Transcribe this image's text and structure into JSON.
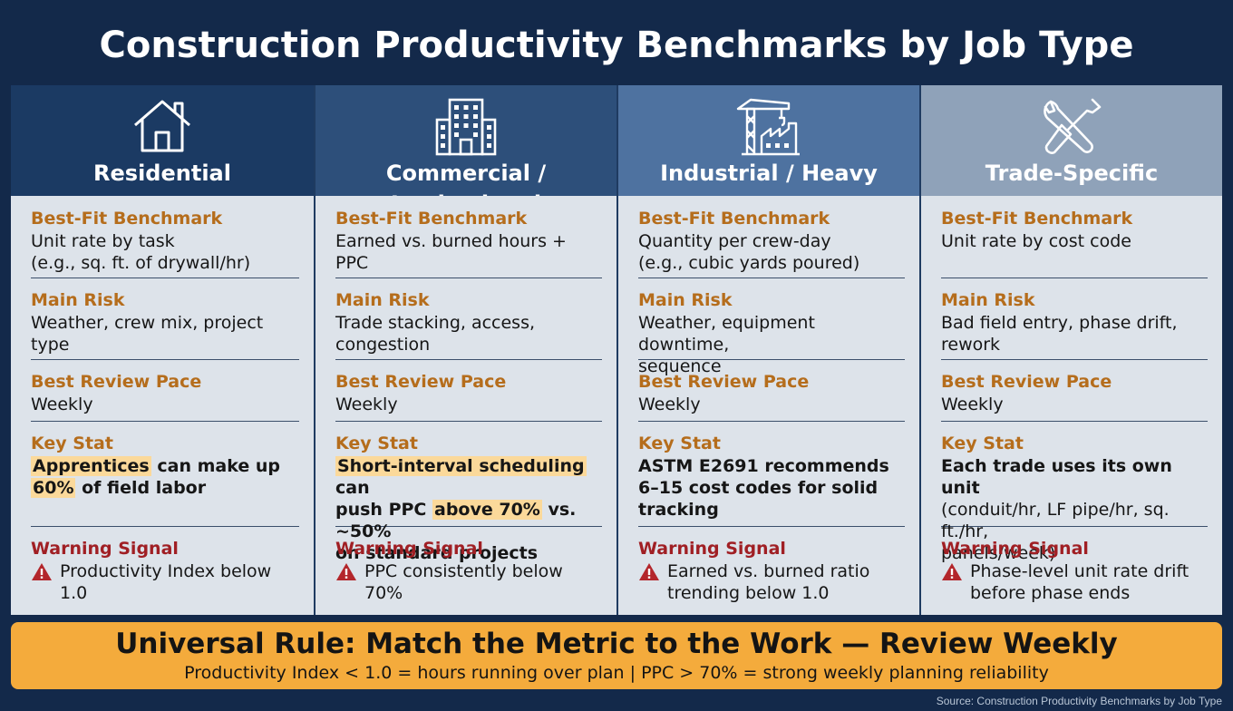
{
  "title": "Construction Productivity Benchmarks by Job Type",
  "columns": [
    {
      "name": "Residential",
      "icon": "house-icon",
      "header_color": "#1b3a63",
      "benchmark_label": "Best-Fit Benchmark",
      "benchmark_line1": "Unit rate by task",
      "benchmark_line2": "(e.g., sq. ft. of drywall/hr)",
      "risk_label": "Main Risk",
      "risk_line1": "Weather, crew mix, project type",
      "risk_line2": "",
      "pace_label": "Best Review Pace",
      "pace": "Weekly",
      "stat_label": "Key Stat",
      "stat_parts": [
        {
          "text": "Apprentices",
          "hl": true
        },
        {
          "text": " can make up",
          "hl": false
        },
        {
          "text": "60%",
          "hl": true
        },
        {
          "text": " of field labor",
          "hl": false
        }
      ],
      "warning_label": "Warning Signal",
      "warning_line1": "Productivity Index below 1.0",
      "warning_line2": ""
    },
    {
      "name": "Commercial / Institutional",
      "icon": "office-building-icon",
      "header_color": "#2d4f7a",
      "benchmark_label": "Best-Fit Benchmark",
      "benchmark_line1": "Earned vs. burned hours + PPC",
      "benchmark_line2": "",
      "risk_label": "Main Risk",
      "risk_line1": "Trade stacking, access,",
      "risk_line2": "congestion",
      "pace_label": "Best Review Pace",
      "pace": "Weekly",
      "stat_label": "Key Stat",
      "stat_parts": [
        {
          "text": "Short-interval scheduling",
          "hl": true
        },
        {
          "text": " can",
          "hl": false
        },
        {
          "text": "push PPC ",
          "hl": false
        },
        {
          "text": "above 70%",
          "hl": true
        },
        {
          "text": " vs. ~50%",
          "hl": false
        },
        {
          "text": "on standard projects",
          "hl": false
        }
      ],
      "warning_label": "Warning Signal",
      "warning_line1": "PPC consistently below 70%",
      "warning_line2": ""
    },
    {
      "name": "Industrial / Heavy",
      "icon": "crane-factory-icon",
      "header_color": "#4e72a0",
      "benchmark_label": "Best-Fit Benchmark",
      "benchmark_line1": "Quantity per crew-day",
      "benchmark_line2": "(e.g., cubic yards poured)",
      "risk_label": "Main Risk",
      "risk_line1": "Weather, equipment downtime,",
      "risk_line2": "sequence",
      "pace_label": "Best Review Pace",
      "pace": "Weekly",
      "stat_label": "Key Stat",
      "stat_line1": "ASTM E2691 recommends",
      "stat_line2": "6–15 cost codes for solid",
      "stat_line3": "tracking",
      "warning_label": "Warning Signal",
      "warning_line1": "Earned vs. burned ratio",
      "warning_line2": "trending below 1.0"
    },
    {
      "name": "Trade-Specific",
      "icon": "wrench-screwdriver-icon",
      "header_color": "#8fa2b9",
      "benchmark_label": "Best-Fit Benchmark",
      "benchmark_line1": "Unit rate by cost code",
      "benchmark_line2": "",
      "risk_label": "Main Risk",
      "risk_line1": "Bad field entry, phase drift,",
      "risk_line2": "rework",
      "pace_label": "Best Review Pace",
      "pace": "Weekly",
      "stat_label": "Key Stat",
      "stat_line1": "Each trade uses its own unit",
      "stat_line2": "(conduit/hr, LF pipe/hr, sq. ft./hr,",
      "stat_line3": "panels/week)",
      "warning_label": "Warning Signal",
      "warning_line1": "Phase-level unit rate drift",
      "warning_line2": "before phase ends"
    }
  ],
  "banner": {
    "main": "Universal Rule: Match the Metric to the Work — Review Weekly",
    "sub": "Productivity Index < 1.0 = hours running over plan | PPC > 70% = strong weekly planning reliability"
  },
  "source": "Source: Construction Productivity Benchmarks by Job Type"
}
